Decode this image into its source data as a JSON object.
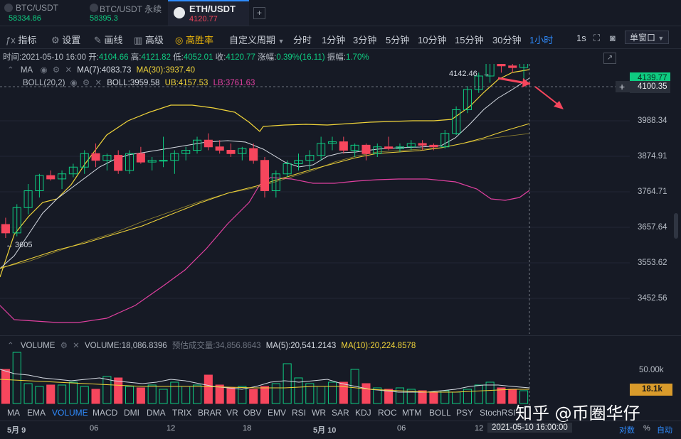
{
  "tabs": [
    {
      "symbol": "BTC/USDT",
      "price": "58334.86",
      "price_color": "#0ecb81"
    },
    {
      "symbol": "BTC/USDT 永续",
      "price": "58395.3",
      "price_color": "#0ecb81"
    },
    {
      "symbol": "ETH/USDT",
      "price": "4120.77",
      "price_color": "#f6465d"
    }
  ],
  "add_tab_label": "+",
  "toolbar": {
    "indicator": "指标",
    "settings": "设置",
    "draw": "画线",
    "advanced": "高级",
    "win_rate": "高胜率",
    "custom_period": "自定义周期",
    "periods": [
      "分时",
      "1分钟",
      "3分钟",
      "5分钟",
      "10分钟",
      "15分钟",
      "30分钟",
      "1小时"
    ],
    "active_period": "1小时",
    "seconds": "1s",
    "window_mode": "单窗口"
  },
  "ohlc": {
    "time_label": "时间:",
    "time": "2021-05-10 16:00",
    "open_label": "开:",
    "open": "4104.66",
    "high_label": "高:",
    "high": "4121.82",
    "low_label": "低:",
    "low": "4052.01",
    "close_label": "收:",
    "close": "4120.77",
    "change_label": "涨幅:",
    "change": "0.39%(16.11)",
    "amp_label": "振幅:",
    "amp": "1.70%"
  },
  "ma": {
    "name": "MA",
    "ma7": "MA(7):4083.73",
    "ma30": "MA(30):3937.40"
  },
  "boll": {
    "name": "BOLL(20,2)",
    "boll": "BOLL:3959.58",
    "ub": "UB:4157.53",
    "lb": "LB:3761.63"
  },
  "price_axis": [
    "4139.77",
    "4100.35",
    "3988.34",
    "3874.91",
    "3764.71",
    "3657.64",
    "3553.62",
    "3452.56"
  ],
  "current_price": "4100.35",
  "high_marker": "4142.46",
  "low_marker": "3605",
  "volume": {
    "name": "VOLUME",
    "value": "VOLUME:18,086.8396",
    "estimate": "预估成交量:34,856.8643",
    "ma5": "MA(5):20,541.2143",
    "ma10": "MA(10):20,224.8578",
    "axis_label": "50.00k",
    "current_label": "18.1k"
  },
  "indicators_bar": [
    "MA",
    "EMA",
    "VOLUME",
    "MACD",
    "DMI",
    "DMA",
    "TRIX",
    "BRAR",
    "VR",
    "OBV",
    "EMV",
    "RSI",
    "WR",
    "SAR",
    "KDJ",
    "ROC",
    "MTM",
    "BOLL",
    "PSY",
    "StochRSI"
  ],
  "active_indicator": "VOLUME",
  "time_axis": [
    "5月 9",
    "06",
    "12",
    "18",
    "5月 10",
    "06",
    "12"
  ],
  "crosshair_time": "2021-05-10 16:00:00",
  "axis_modes": [
    "对数",
    "%",
    "自动"
  ],
  "watermark": "知乎 @币圈华仔",
  "colors": {
    "up": "#0ecb81",
    "down": "#f6465d",
    "ma7": "#d6dbe3",
    "ma30": "#f0d43a",
    "boll_lb": "#e040a0",
    "accent": "#2f8cff",
    "arrow": "#f6465d"
  },
  "chart_data": {
    "type": "candlestick",
    "interval": "1小时",
    "candles": [
      [
        3640,
        3660,
        3600,
        3615
      ],
      [
        3615,
        3700,
        3605,
        3690
      ],
      [
        3690,
        3760,
        3670,
        3740
      ],
      [
        3740,
        3790,
        3720,
        3785
      ],
      [
        3785,
        3800,
        3770,
        3775
      ],
      [
        3775,
        3800,
        3745,
        3790
      ],
      [
        3790,
        3820,
        3780,
        3810
      ],
      [
        3810,
        3860,
        3790,
        3850
      ],
      [
        3850,
        3880,
        3810,
        3830
      ],
      [
        3830,
        3850,
        3800,
        3845
      ],
      [
        3845,
        3860,
        3790,
        3800
      ],
      [
        3800,
        3860,
        3790,
        3850
      ],
      [
        3850,
        3870,
        3820,
        3825
      ],
      [
        3825,
        3840,
        3800,
        3830
      ],
      [
        3830,
        3900,
        3810,
        3830
      ],
      [
        3830,
        3860,
        3790,
        3850
      ],
      [
        3850,
        3870,
        3830,
        3860
      ],
      [
        3860,
        3900,
        3850,
        3890
      ],
      [
        3890,
        3910,
        3860,
        3870
      ],
      [
        3870,
        3890,
        3850,
        3860
      ],
      [
        3860,
        3880,
        3840,
        3850
      ],
      [
        3850,
        3870,
        3830,
        3865
      ],
      [
        3865,
        3880,
        3820,
        3830
      ],
      [
        3830,
        3840,
        3720,
        3740
      ],
      [
        3740,
        3800,
        3720,
        3790
      ],
      [
        3790,
        3830,
        3780,
        3820
      ],
      [
        3820,
        3850,
        3800,
        3830
      ],
      [
        3830,
        3860,
        3800,
        3845
      ],
      [
        3845,
        3900,
        3830,
        3880
      ],
      [
        3880,
        3900,
        3860,
        3885
      ],
      [
        3885,
        3900,
        3850,
        3860
      ],
      [
        3860,
        3880,
        3840,
        3875
      ],
      [
        3875,
        3880,
        3830,
        3850
      ],
      [
        3850,
        3880,
        3840,
        3870
      ],
      [
        3870,
        3900,
        3860,
        3865
      ],
      [
        3865,
        3880,
        3855,
        3870
      ],
      [
        3870,
        3890,
        3860,
        3880
      ],
      [
        3880,
        3890,
        3860,
        3875
      ],
      [
        3875,
        3880,
        3860,
        3870
      ],
      [
        3870,
        3920,
        3865,
        3910
      ],
      [
        3910,
        3990,
        3905,
        3980
      ],
      [
        3980,
        4050,
        3970,
        4040
      ],
      [
        4040,
        4090,
        4030,
        4080
      ],
      [
        4080,
        4130,
        4060,
        4120
      ],
      [
        4120,
        4142,
        4090,
        4110
      ],
      [
        4110,
        4125,
        4090,
        4105
      ],
      [
        4105,
        4122,
        4052,
        4121
      ]
    ],
    "volume_max_k": 60
  }
}
